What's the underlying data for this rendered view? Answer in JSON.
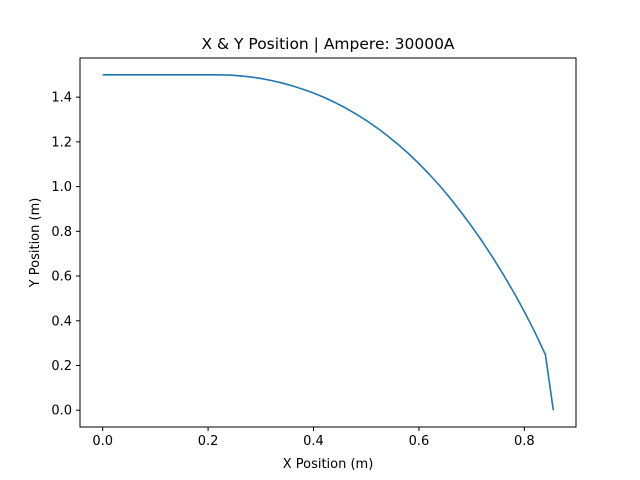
{
  "chart_data": {
    "type": "line",
    "title": "X & Y Position | Ampere: 30000A",
    "xlabel": "X Position (m)",
    "ylabel": "Y Position (m)",
    "xlim": [
      -0.043,
      0.898
    ],
    "ylim": [
      -0.075,
      1.575
    ],
    "grid": false,
    "x_ticks": [
      0.0,
      0.2,
      0.4,
      0.6,
      0.8
    ],
    "x_tick_labels": [
      "0.0",
      "0.2",
      "0.4",
      "0.6",
      "0.8"
    ],
    "y_ticks": [
      0.0,
      0.2,
      0.4,
      0.6,
      0.8,
      1.0,
      1.2,
      1.4
    ],
    "y_tick_labels": [
      "0.0",
      "0.2",
      "0.4",
      "0.6",
      "0.8",
      "1.0",
      "1.2",
      "1.4"
    ],
    "colors": {
      "line": "#1f77b4",
      "axes": "#000000",
      "background": "#ffffff"
    },
    "series": [
      {
        "x": [
          0.0,
          0.05,
          0.1,
          0.15,
          0.2,
          0.22,
          0.24,
          0.26,
          0.28,
          0.3,
          0.32,
          0.34,
          0.36,
          0.38,
          0.4,
          0.42,
          0.44,
          0.46,
          0.48,
          0.5,
          0.52,
          0.54,
          0.56,
          0.58,
          0.6,
          0.62,
          0.64,
          0.66,
          0.68,
          0.7,
          0.72,
          0.74,
          0.76,
          0.78,
          0.8,
          0.82,
          0.84,
          0.855
        ],
        "y": [
          1.5,
          1.5,
          1.5,
          1.5,
          1.5,
          1.5,
          1.4985,
          1.4955,
          1.4905,
          1.4835,
          1.4745,
          1.4635,
          1.4505,
          1.4355,
          1.4185,
          1.399,
          1.377,
          1.3525,
          1.3255,
          1.296,
          1.2635,
          1.228,
          1.1895,
          1.148,
          1.103,
          1.054,
          1.002,
          0.946,
          0.886,
          0.8225,
          0.755,
          0.683,
          0.607,
          0.527,
          0.441,
          0.349,
          0.248,
          0.0
        ]
      }
    ]
  }
}
